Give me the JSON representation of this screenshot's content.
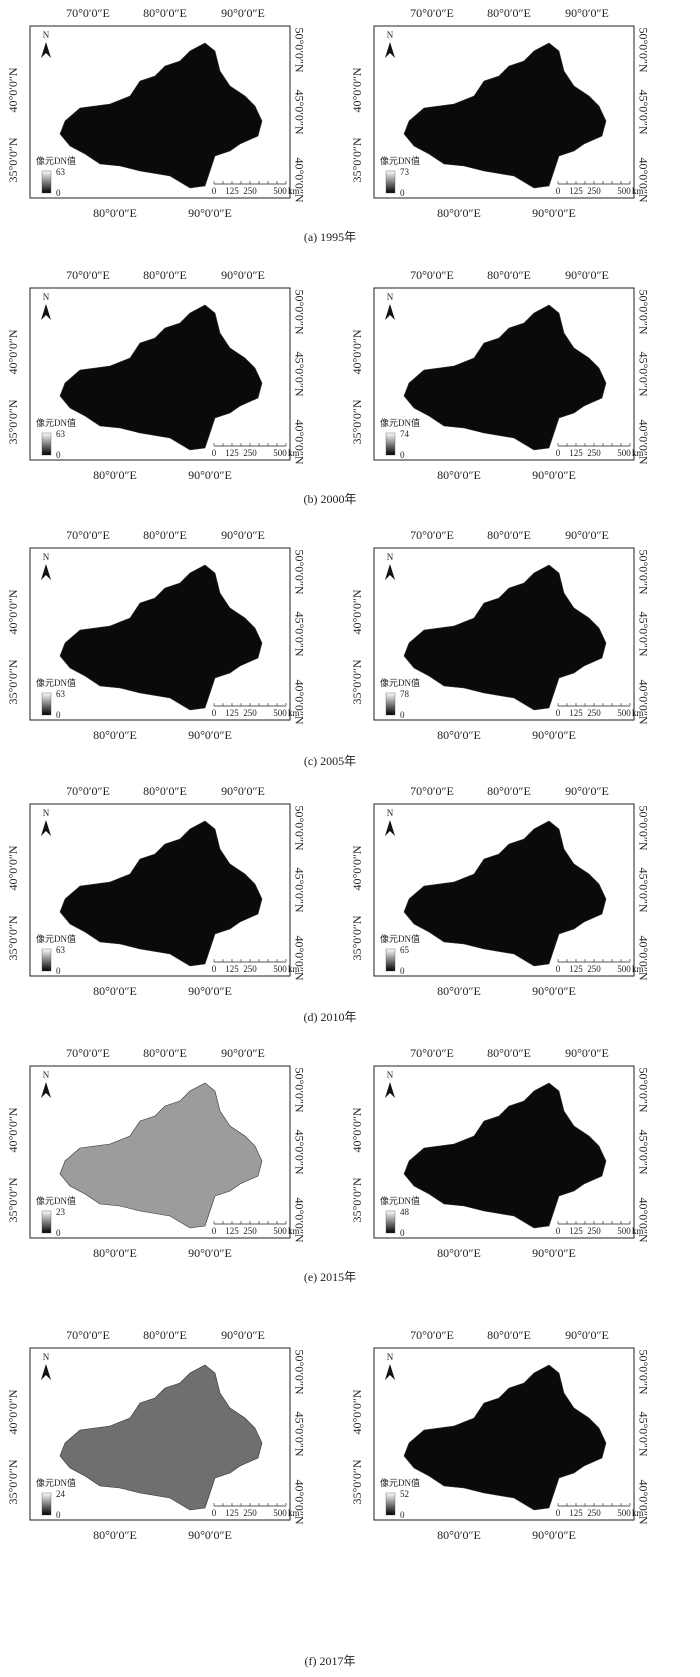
{
  "common": {
    "top_labels": [
      "70°0′0″E",
      "80°0′0″E",
      "90°0′0″E"
    ],
    "bottom_labels": [
      "80°0′0″E",
      "90°0′0″E"
    ],
    "left_labels": [
      "40°0′0″N",
      "35°0′0″N"
    ],
    "right_labels": [
      "50°0′0″N",
      "45°0′0″N",
      "40°0′0″N"
    ],
    "north": "N",
    "legend_title": "像元DN值",
    "scale_labels": [
      "0",
      "125",
      "250",
      "500"
    ],
    "scale_unit": "km"
  },
  "rows": [
    {
      "caption": "(a) 1995年",
      "maps": [
        {
          "legend_max": 63,
          "legend_min": 0,
          "fill": "#0a0a0a"
        },
        {
          "legend_max": 73,
          "legend_min": 0,
          "fill": "#0a0a0a"
        }
      ]
    },
    {
      "caption": "(b) 2000年",
      "maps": [
        {
          "legend_max": 63,
          "legend_min": 0,
          "fill": "#0a0a0a"
        },
        {
          "legend_max": 74,
          "legend_min": 0,
          "fill": "#0a0a0a"
        }
      ]
    },
    {
      "caption": "(c) 2005年",
      "maps": [
        {
          "legend_max": 63,
          "legend_min": 0,
          "fill": "#0a0a0a"
        },
        {
          "legend_max": 78,
          "legend_min": 0,
          "fill": "#0a0a0a"
        }
      ]
    },
    {
      "caption": "(d) 2010年",
      "maps": [
        {
          "legend_max": 63,
          "legend_min": 0,
          "fill": "#0a0a0a"
        },
        {
          "legend_max": 65,
          "legend_min": 0,
          "fill": "#0a0a0a"
        }
      ]
    },
    {
      "caption": "(e) 2015年",
      "maps": [
        {
          "legend_max": 23,
          "legend_min": 0,
          "fill": "#9c9c9c"
        },
        {
          "legend_max": 48,
          "legend_min": 0,
          "fill": "#0a0a0a"
        }
      ]
    },
    {
      "caption": "(f) 2017年",
      "maps": [
        {
          "legend_max": 24,
          "legend_min": 0,
          "fill": "#6f6f6f"
        },
        {
          "legend_max": 52,
          "legend_min": 0,
          "fill": "#0a0a0a"
        }
      ]
    }
  ]
}
